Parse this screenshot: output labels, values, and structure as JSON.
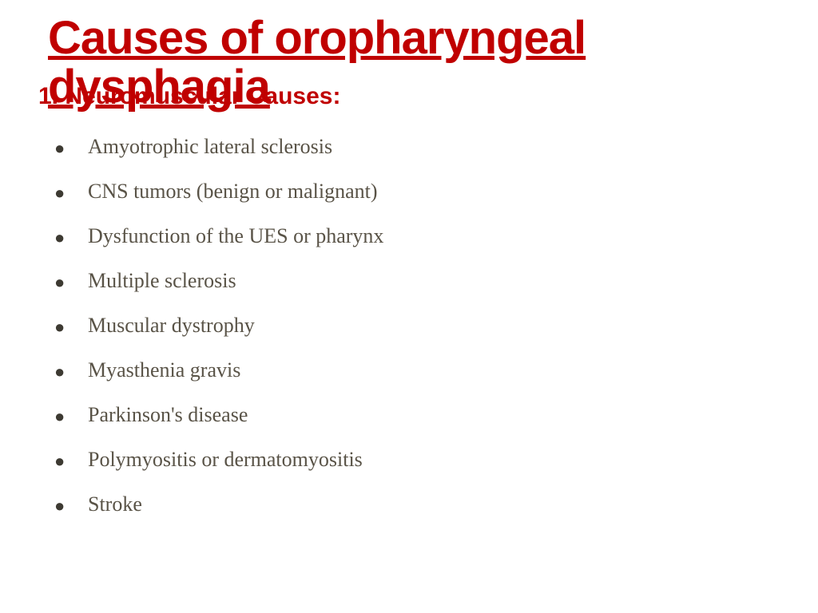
{
  "title": {
    "text": "Causes of oropharyngeal dysphagia",
    "color": "#c00000",
    "fontsize": 58
  },
  "subtitle": {
    "text": "1. Neuromuscular Causes:",
    "color": "#c00000",
    "fontsize": 30
  },
  "bullets": {
    "color": "#595347",
    "bullet_color": "#3d3a32",
    "fontsize": 26,
    "line_height": 56,
    "items": [
      "Amyotrophic lateral sclerosis",
      "CNS tumors (benign or malignant)",
      "Dysfunction of the UES or pharynx",
      "Multiple sclerosis",
      "Muscular dystrophy",
      "Myasthenia gravis",
      "Parkinson's disease",
      "Polymyositis or dermatomyositis",
      " Stroke"
    ]
  },
  "background_color": "#ffffff"
}
